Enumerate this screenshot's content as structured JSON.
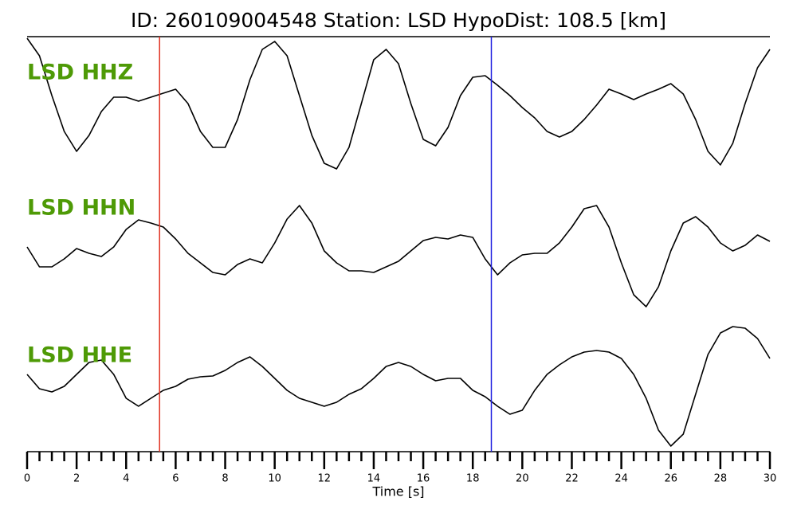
{
  "chart_data": {
    "type": "line",
    "title": "ID: 260109004548   Station: LSD   HypoDist:   108.5 [km]",
    "x_label": "Time [s]",
    "x": [
      0,
      0.5,
      1,
      1.5,
      2,
      2.5,
      3,
      3.5,
      4,
      4.5,
      5,
      5.5,
      6,
      6.5,
      7,
      7.5,
      8,
      8.5,
      9,
      9.5,
      10,
      10.5,
      11,
      11.5,
      12,
      12.5,
      13,
      13.5,
      14,
      14.5,
      15,
      15.5,
      16,
      16.5,
      17,
      17.5,
      18,
      18.5,
      19,
      19.5,
      20,
      20.5,
      21,
      21.5,
      22,
      22.5,
      23,
      23.5,
      24,
      24.5,
      25,
      25.5,
      26,
      26.5,
      27,
      27.5,
      28,
      28.5,
      29,
      29.5,
      30
    ],
    "series": [
      {
        "name": "LSD HHZ",
        "color": "#000000",
        "values": [
          82,
          60,
          10,
          -35,
          -60,
          -40,
          -10,
          8,
          8,
          3,
          8,
          13,
          18,
          0,
          -35,
          -55,
          -55,
          -20,
          30,
          68,
          78,
          60,
          10,
          -40,
          -75,
          -82,
          -55,
          0,
          55,
          68,
          50,
          0,
          -45,
          -53,
          -30,
          10,
          33,
          35,
          23,
          10,
          -5,
          -18,
          -35,
          -42,
          -35,
          -20,
          -2,
          18,
          12,
          5,
          12,
          18,
          25,
          12,
          -20,
          -60,
          -77,
          -50,
          0,
          45,
          68
        ]
      },
      {
        "name": "LSD HHN",
        "color": "#000000",
        "values": [
          -10,
          -35,
          -35,
          -25,
          -12,
          -18,
          -22,
          -10,
          12,
          24,
          20,
          15,
          0,
          -18,
          -30,
          -42,
          -45,
          -32,
          -25,
          -30,
          -5,
          25,
          42,
          20,
          -15,
          -30,
          -40,
          -40,
          -42,
          -35,
          -28,
          -15,
          -2,
          2,
          0,
          5,
          2,
          -25,
          -45,
          -30,
          -20,
          -18,
          -18,
          -5,
          15,
          38,
          42,
          15,
          -30,
          -70,
          -85,
          -60,
          -15,
          20,
          28,
          15,
          -5,
          -15,
          -8,
          5,
          -3
        ]
      },
      {
        "name": "LSD HHE",
        "color": "#000000",
        "values": [
          15,
          -3,
          -7,
          0,
          15,
          30,
          33,
          15,
          -15,
          -25,
          -15,
          -5,
          0,
          9,
          12,
          13,
          20,
          30,
          37,
          25,
          10,
          -5,
          -15,
          -20,
          -25,
          -20,
          -10,
          -3,
          10,
          25,
          30,
          25,
          15,
          7,
          10,
          10,
          -5,
          -13,
          -25,
          -35,
          -30,
          -5,
          15,
          27,
          37,
          43,
          45,
          43,
          35,
          15,
          -15,
          -55,
          -75,
          -60,
          -10,
          40,
          67,
          75,
          73,
          60,
          35
        ]
      }
    ],
    "label_color": "#4e9a06",
    "ylim": [
      -90,
      90
    ],
    "xlim": [
      0,
      30
    ],
    "xticks": [
      0,
      2,
      4,
      6,
      8,
      10,
      12,
      14,
      16,
      18,
      20,
      22,
      24,
      26,
      28,
      30
    ],
    "xminorticks": [
      0.5,
      1,
      1.5,
      2.5,
      3,
      3.5,
      4.5,
      5,
      5.5,
      6.5,
      7,
      7.5,
      8.5,
      9,
      9.5,
      10.5,
      11,
      11.5,
      12.5,
      13,
      13.5,
      14.5,
      15,
      15.5,
      16.5,
      17,
      17.5,
      18.5,
      19,
      19.5,
      20.5,
      21,
      21.5,
      22.5,
      23,
      23.5,
      24.5,
      25,
      25.5,
      26.5,
      27,
      27.5,
      28.5,
      29,
      29.5
    ],
    "vlines": [
      {
        "x": 5.35,
        "color": "#e03020"
      },
      {
        "x": 18.75,
        "color": "#2020e0"
      }
    ]
  }
}
